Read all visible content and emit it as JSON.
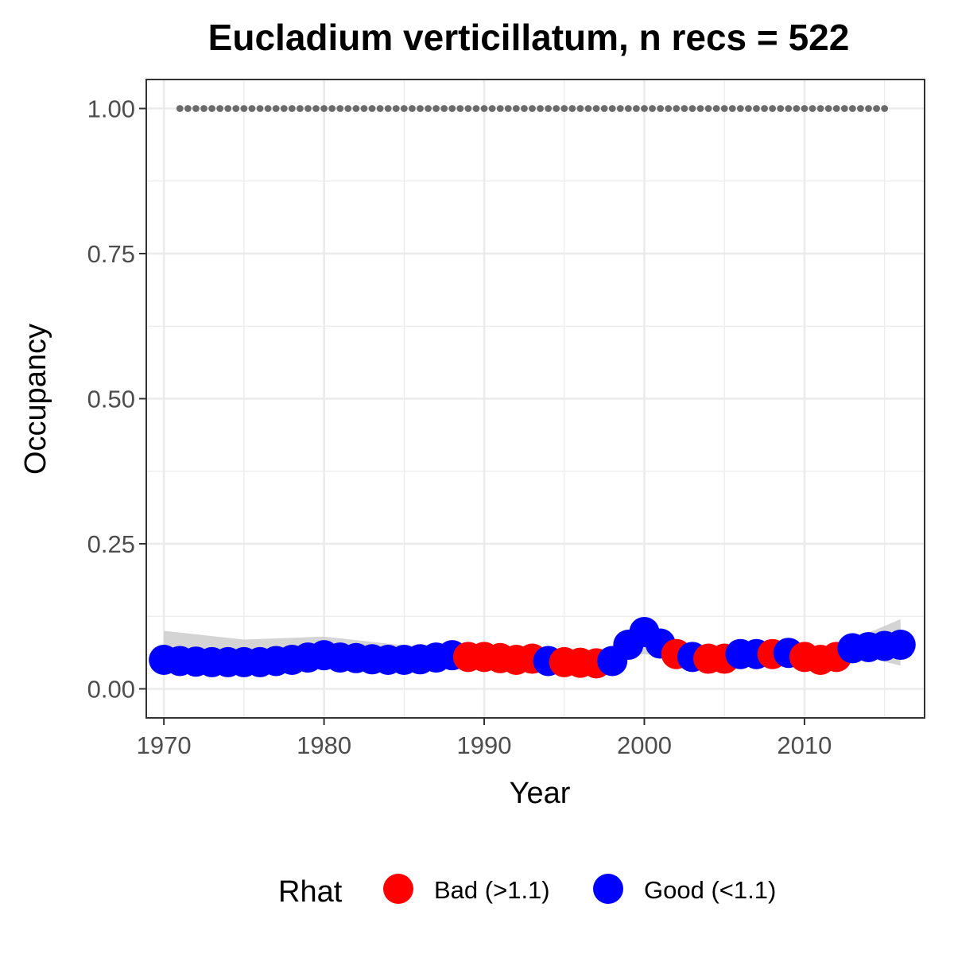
{
  "chart_data": {
    "type": "scatter",
    "title": "Eucladium verticillatum, n recs = 522",
    "xlabel": "Year",
    "ylabel": "Occupancy",
    "xlim": [
      1968.9,
      2017.5
    ],
    "ylim": [
      -0.05,
      1.05
    ],
    "x_ticks": [
      1970,
      1980,
      1990,
      2000,
      2010
    ],
    "x_tick_labels": [
      "1970",
      "1980",
      "1990",
      "2000",
      "2010"
    ],
    "y_ticks": [
      0,
      0.25,
      0.5,
      0.75,
      1.0
    ],
    "y_tick_labels": [
      "0.00",
      "0.25",
      "0.50",
      "0.75",
      "1.00"
    ],
    "grid": true,
    "legend": {
      "title": "Rhat",
      "position": "bottom",
      "entries": [
        {
          "label": "Bad (>1.1)",
          "color": "#ff0000"
        },
        {
          "label": "Good (<1.1)",
          "color": "#0000ff"
        }
      ]
    },
    "colors": {
      "bad": "#ff0000",
      "good": "#0000ff",
      "reference": "#6b6b6b",
      "ribbon": "#cccccc"
    },
    "reference_line": {
      "y": 1.0,
      "x_start": 1971,
      "x_end": 2015,
      "style": "dotted"
    },
    "ribbon": {
      "x": [
        1970,
        1975,
        1980,
        1985,
        1990,
        1995,
        2000,
        2005,
        2010,
        2013,
        2016
      ],
      "lower": [
        0.03,
        0.04,
        0.04,
        0.04,
        0.045,
        0.04,
        0.06,
        0.045,
        0.045,
        0.06,
        0.04
      ],
      "upper": [
        0.1,
        0.085,
        0.09,
        0.075,
        0.07,
        0.06,
        0.08,
        0.065,
        0.065,
        0.085,
        0.12
      ]
    },
    "series": [
      {
        "name": "Good (<1.1)",
        "color": "#0000ff",
        "points": [
          [
            1970,
            0.05
          ],
          [
            1971,
            0.048
          ],
          [
            1972,
            0.047
          ],
          [
            1973,
            0.046
          ],
          [
            1974,
            0.046
          ],
          [
            1975,
            0.046
          ],
          [
            1976,
            0.046
          ],
          [
            1977,
            0.048
          ],
          [
            1978,
            0.05
          ],
          [
            1979,
            0.054
          ],
          [
            1980,
            0.058
          ],
          [
            1981,
            0.054
          ],
          [
            1982,
            0.053
          ],
          [
            1983,
            0.051
          ],
          [
            1984,
            0.05
          ],
          [
            1985,
            0.05
          ],
          [
            1986,
            0.051
          ],
          [
            1987,
            0.054
          ],
          [
            1988,
            0.058
          ],
          [
            1994,
            0.048
          ],
          [
            1998,
            0.048
          ],
          [
            1999,
            0.076
          ],
          [
            2000,
            0.098
          ],
          [
            2001,
            0.078
          ],
          [
            2003,
            0.055
          ],
          [
            2006,
            0.06
          ],
          [
            2007,
            0.06
          ],
          [
            2009,
            0.062
          ],
          [
            2013,
            0.07
          ],
          [
            2014,
            0.072
          ],
          [
            2015,
            0.074
          ],
          [
            2016,
            0.076
          ]
        ]
      },
      {
        "name": "Bad (>1.1)",
        "color": "#ff0000",
        "points": [
          [
            1989,
            0.055
          ],
          [
            1990,
            0.055
          ],
          [
            1991,
            0.053
          ],
          [
            1992,
            0.05
          ],
          [
            1993,
            0.052
          ],
          [
            1995,
            0.046
          ],
          [
            1996,
            0.045
          ],
          [
            1997,
            0.044
          ],
          [
            2002,
            0.06
          ],
          [
            2004,
            0.052
          ],
          [
            2005,
            0.052
          ],
          [
            2008,
            0.06
          ],
          [
            2010,
            0.055
          ],
          [
            2011,
            0.05
          ],
          [
            2012,
            0.055
          ]
        ]
      }
    ]
  }
}
